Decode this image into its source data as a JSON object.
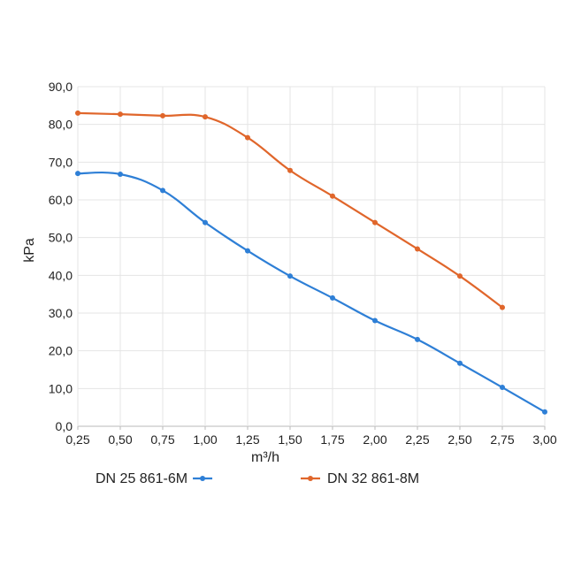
{
  "chart_data": {
    "type": "line",
    "title": "",
    "xlabel": "m³/h",
    "ylabel": "kPa",
    "xlim": [
      0.25,
      3.0
    ],
    "ylim": [
      0,
      90
    ],
    "x_ticks": [
      "0,25",
      "0,50",
      "0,75",
      "1,00",
      "1,25",
      "1,50",
      "1,75",
      "2,00",
      "2,25",
      "2,50",
      "2,75",
      "3,00"
    ],
    "y_ticks": [
      "0,0",
      "10,0",
      "20,0",
      "30,0",
      "40,0",
      "50,0",
      "60,0",
      "70,0",
      "80,0",
      "90,0"
    ],
    "grid": true,
    "legend_position": "bottom",
    "series": [
      {
        "name": "DN 25  861-6M",
        "color": "#2e7fd6",
        "x": [
          0.25,
          0.5,
          0.75,
          1.0,
          1.25,
          1.5,
          1.75,
          2.0,
          2.25,
          2.5,
          2.75,
          3.0
        ],
        "y": [
          67.0,
          66.8,
          62.5,
          54.0,
          46.5,
          39.8,
          34.0,
          28.0,
          23.0,
          16.7,
          10.3,
          3.8
        ]
      },
      {
        "name": "DN 32  861-8M",
        "color": "#e0662b",
        "x": [
          0.25,
          0.5,
          0.75,
          1.0,
          1.25,
          1.5,
          1.75,
          2.0,
          2.25,
          2.5,
          2.75
        ],
        "y": [
          83.0,
          82.7,
          82.3,
          82.0,
          76.5,
          67.8,
          61.0,
          54.0,
          47.0,
          39.8,
          31.5
        ]
      }
    ]
  }
}
